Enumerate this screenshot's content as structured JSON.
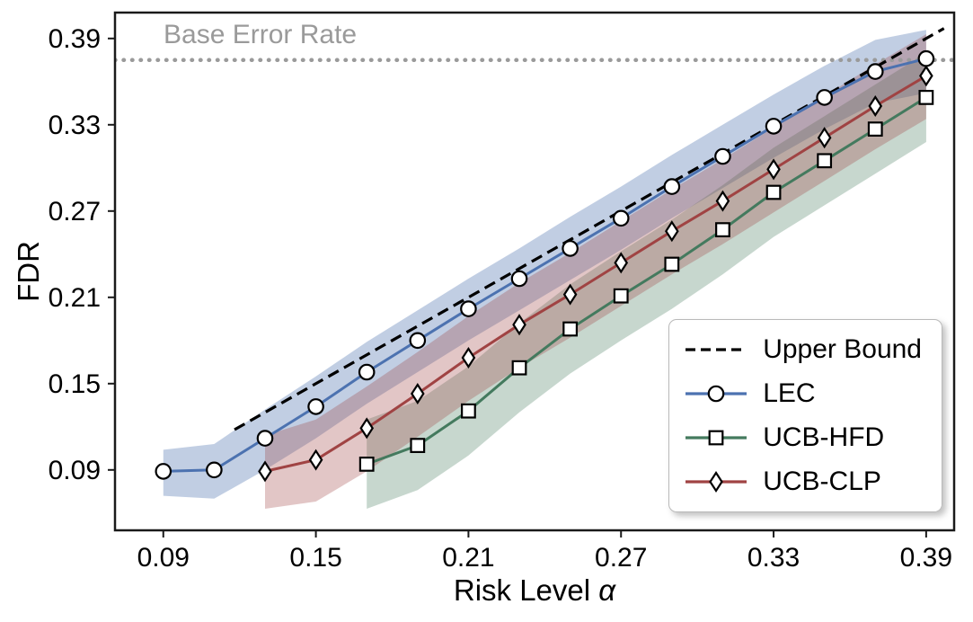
{
  "chart_data": {
    "type": "line",
    "title": "",
    "xlabel": "Risk Level α",
    "xlabel_text": "Risk Level",
    "xlabel_symbol": "α",
    "ylabel": "FDR",
    "xlim": [
      0.071,
      0.401
    ],
    "ylim": [
      0.048,
      0.408
    ],
    "xticks": [
      0.09,
      0.15,
      0.21,
      0.27,
      0.33,
      0.39
    ],
    "yticks": [
      0.09,
      0.15,
      0.21,
      0.27,
      0.33,
      0.39
    ],
    "grid": false,
    "legend_position": "lower right",
    "base_error_rate": {
      "label": "Base Error Rate",
      "y": 0.375,
      "color": "#9a9a9a",
      "style": "dotted"
    },
    "upper_bound": {
      "label": "Upper Bound",
      "x": [
        0.118,
        0.397
      ],
      "y": [
        0.118,
        0.397
      ],
      "color": "#000000",
      "style": "dashed"
    },
    "series": [
      {
        "name": "LEC",
        "color": "#4c72b0",
        "marker": "circle",
        "band_opacity": 0.35,
        "x": [
          0.09,
          0.11,
          0.13,
          0.15,
          0.17,
          0.19,
          0.21,
          0.23,
          0.25,
          0.27,
          0.29,
          0.31,
          0.33,
          0.35,
          0.37,
          0.39
        ],
        "y": [
          0.089,
          0.09,
          0.112,
          0.134,
          0.158,
          0.18,
          0.202,
          0.223,
          0.244,
          0.265,
          0.287,
          0.308,
          0.329,
          0.349,
          0.367,
          0.376
        ],
        "band_lower": [
          0.072,
          0.07,
          0.09,
          0.112,
          0.136,
          0.158,
          0.18,
          0.201,
          0.222,
          0.243,
          0.265,
          0.286,
          0.307,
          0.327,
          0.345,
          0.352
        ],
        "band_upper": [
          0.104,
          0.108,
          0.132,
          0.155,
          0.179,
          0.201,
          0.223,
          0.244,
          0.266,
          0.287,
          0.309,
          0.33,
          0.351,
          0.371,
          0.389,
          0.396
        ]
      },
      {
        "name": "UCB-HFD",
        "color": "#447a5e",
        "marker": "square",
        "band_opacity": 0.3,
        "x": [
          0.17,
          0.19,
          0.21,
          0.23,
          0.25,
          0.27,
          0.29,
          0.31,
          0.33,
          0.35,
          0.37,
          0.39
        ],
        "y": [
          0.094,
          0.107,
          0.131,
          0.161,
          0.188,
          0.211,
          0.233,
          0.257,
          0.283,
          0.305,
          0.327,
          0.349
        ],
        "band_lower": [
          0.063,
          0.076,
          0.1,
          0.13,
          0.157,
          0.18,
          0.202,
          0.226,
          0.252,
          0.274,
          0.296,
          0.318
        ],
        "band_upper": [
          0.125,
          0.138,
          0.162,
          0.192,
          0.219,
          0.242,
          0.264,
          0.288,
          0.314,
          0.336,
          0.358,
          0.38
        ]
      },
      {
        "name": "UCB-CLP",
        "color": "#a04343",
        "marker": "diamond",
        "band_opacity": 0.3,
        "x": [
          0.13,
          0.15,
          0.17,
          0.19,
          0.21,
          0.23,
          0.25,
          0.27,
          0.29,
          0.31,
          0.33,
          0.35,
          0.37,
          0.39
        ],
        "y": [
          0.089,
          0.097,
          0.119,
          0.143,
          0.168,
          0.191,
          0.212,
          0.234,
          0.256,
          0.277,
          0.299,
          0.321,
          0.343,
          0.364
        ],
        "band_lower": [
          0.063,
          0.068,
          0.089,
          0.113,
          0.138,
          0.161,
          0.182,
          0.204,
          0.226,
          0.247,
          0.269,
          0.291,
          0.313,
          0.334
        ],
        "band_upper": [
          0.114,
          0.125,
          0.148,
          0.172,
          0.197,
          0.22,
          0.241,
          0.263,
          0.285,
          0.306,
          0.328,
          0.35,
          0.372,
          0.393
        ]
      }
    ],
    "legend_entries": [
      "Upper Bound",
      "LEC",
      "UCB-HFD",
      "UCB-CLP"
    ]
  }
}
